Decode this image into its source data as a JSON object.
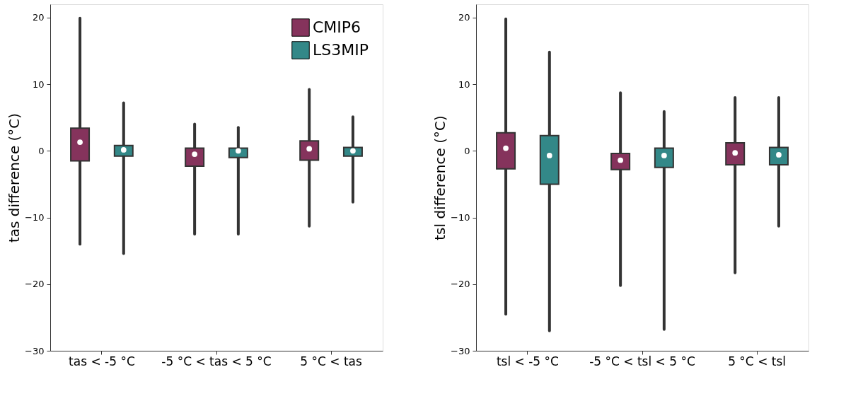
{
  "chart_data": [
    {
      "type": "box",
      "categories": [
        "tas < -5 °C",
        "-5 °C < tas < 5 °C",
        "5 °C < tas"
      ],
      "ylabel": "tas difference (°C)",
      "ylim": [
        -30,
        22
      ],
      "yticks": [
        -30,
        -20,
        -10,
        0,
        10,
        20
      ],
      "grid": false,
      "legend": "top right",
      "series": [
        {
          "name": "CMIP6",
          "color": "#85335c",
          "boxes": [
            {
              "low": -14.0,
              "q1": -1.5,
              "median": 1.3,
              "q3": 3.4,
              "high": 19.9
            },
            {
              "low": -12.5,
              "q1": -2.3,
              "median": -0.5,
              "q3": 0.4,
              "high": 4.0
            },
            {
              "low": -11.3,
              "q1": -1.4,
              "median": 0.3,
              "q3": 1.5,
              "high": 9.2
            }
          ]
        },
        {
          "name": "LS3MIP",
          "color": "#338888",
          "boxes": [
            {
              "low": -15.4,
              "q1": -0.8,
              "median": 0.15,
              "q3": 0.8,
              "high": 7.2
            },
            {
              "low": -12.5,
              "q1": -1.0,
              "median": 0.0,
              "q3": 0.4,
              "high": 3.5
            },
            {
              "low": -7.7,
              "q1": -0.8,
              "median": 0.0,
              "q3": 0.5,
              "high": 5.1
            }
          ]
        }
      ]
    },
    {
      "type": "box",
      "categories": [
        "tsl < -5 °C",
        "-5 °C < tsl < 5 °C",
        "5 °C < tsl"
      ],
      "ylabel": "tsl difference (°C)",
      "ylim": [
        -30,
        22
      ],
      "yticks": [
        -30,
        -20,
        -10,
        0,
        10,
        20
      ],
      "grid": false,
      "series": [
        {
          "name": "CMIP6",
          "color": "#85335c",
          "boxes": [
            {
              "low": -24.5,
              "q1": -2.7,
              "median": 0.4,
              "q3": 2.7,
              "high": 19.8
            },
            {
              "low": -20.2,
              "q1": -2.8,
              "median": -1.4,
              "q3": -0.4,
              "high": 8.7
            },
            {
              "low": -18.3,
              "q1": -2.1,
              "median": -0.3,
              "q3": 1.2,
              "high": 8.0
            }
          ]
        },
        {
          "name": "LS3MIP",
          "color": "#338888",
          "boxes": [
            {
              "low": -27.0,
              "q1": -5.0,
              "median": -0.7,
              "q3": 2.3,
              "high": 14.8
            },
            {
              "low": -26.8,
              "q1": -2.5,
              "median": -0.7,
              "q3": 0.4,
              "high": 5.9
            },
            {
              "low": -11.3,
              "q1": -2.1,
              "median": -0.6,
              "q3": 0.5,
              "high": 8.0
            }
          ]
        }
      ]
    }
  ]
}
